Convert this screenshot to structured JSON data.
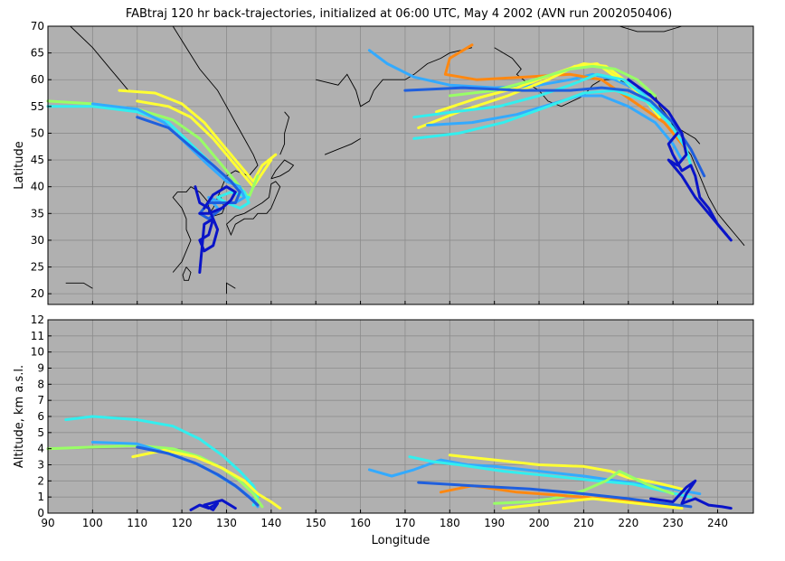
{
  "title": "FABtraj 120 hr back-trajectories, initialized at 06:00 UTC, May 4 2002 (AVN run 2002050406)",
  "colors": {
    "background": "#b0b0b0",
    "grid": "#8c8c8c",
    "coast": "#000000",
    "yellow": "#ffff33",
    "lightgreen": "#99ff66",
    "cyan": "#33eeee",
    "skyblue": "#33aaff",
    "blue": "#1f5fdd",
    "darkblue": "#0a14c8",
    "orange": "#ff8811"
  },
  "chart_data": [
    {
      "type": "line",
      "panel": "map",
      "xlabel": "",
      "ylabel": "Latitude",
      "xlim": [
        90,
        248
      ],
      "ylim": [
        18,
        70
      ],
      "yticks": [
        20,
        25,
        30,
        35,
        40,
        45,
        50,
        55,
        60,
        65,
        70
      ],
      "grid": true,
      "series": [
        {
          "color": "yellow",
          "x": [
            106,
            114,
            120,
            125,
            129,
            132,
            134,
            136,
            138,
            141
          ],
          "y": [
            58,
            57.5,
            55.5,
            52,
            48,
            45,
            43,
            41,
            44,
            46
          ]
        },
        {
          "color": "yellow",
          "x": [
            110,
            117,
            122,
            127,
            131,
            134,
            136,
            140
          ],
          "y": [
            56,
            55,
            53,
            49,
            45,
            42,
            40,
            45
          ]
        },
        {
          "color": "lightgreen",
          "x": [
            90,
            100,
            110,
            118,
            124,
            128,
            131,
            133,
            135,
            137
          ],
          "y": [
            56,
            55.5,
            54.5,
            52.5,
            49,
            45,
            42,
            40,
            38,
            42
          ]
        },
        {
          "color": "cyan",
          "x": [
            90,
            100,
            110,
            117,
            122,
            127,
            131,
            134,
            135,
            133,
            130,
            128,
            131,
            135
          ],
          "y": [
            55,
            55,
            54,
            52,
            48,
            44,
            41,
            39,
            37,
            36,
            37,
            38,
            39,
            38
          ]
        },
        {
          "color": "skyblue",
          "x": [
            100,
            110,
            116,
            121,
            126,
            130,
            133,
            134,
            132,
            129,
            126,
            128
          ],
          "y": [
            55.5,
            54.5,
            52,
            48,
            44,
            41,
            40,
            38,
            37,
            37,
            38,
            36
          ]
        },
        {
          "color": "blue",
          "x": [
            110,
            117,
            122,
            127,
            131,
            133,
            132,
            129,
            126,
            124,
            126,
            129
          ],
          "y": [
            53,
            51,
            47.5,
            44,
            41,
            39,
            37,
            37,
            37,
            35,
            34,
            36
          ]
        },
        {
          "color": "darkblue",
          "x": [
            123,
            124,
            126,
            127,
            126,
            124,
            125,
            127,
            128,
            127,
            125,
            124
          ],
          "y": [
            40,
            37,
            36,
            34,
            31,
            30,
            28,
            29,
            32,
            34,
            33,
            24
          ]
        },
        {
          "color": "darkblue",
          "x": [
            124,
            126,
            129,
            131,
            132,
            130,
            127,
            125
          ],
          "y": [
            35,
            35,
            36,
            37.5,
            39,
            40,
            38.5,
            36
          ]
        },
        {
          "color": "skyblue",
          "x": [
            162,
            166,
            172,
            180,
            190,
            200,
            207,
            212,
            217,
            221,
            225
          ],
          "y": [
            65.5,
            63,
            60.5,
            59,
            58.5,
            59,
            60,
            61,
            60,
            58.5,
            57
          ]
        },
        {
          "color": "orange",
          "x": [
            185,
            180,
            179,
            186,
            197,
            207,
            214,
            221,
            228,
            233
          ],
          "y": [
            66.5,
            64,
            61,
            60,
            60.5,
            61,
            60,
            56,
            52,
            47
          ]
        },
        {
          "color": "yellow",
          "x": [
            177,
            186,
            195,
            203,
            210,
            215,
            219,
            223,
            227
          ],
          "y": [
            54,
            56.5,
            58.5,
            61,
            63,
            62.5,
            60,
            57,
            53
          ]
        },
        {
          "color": "yellow",
          "x": [
            173,
            182,
            193,
            202,
            208,
            213,
            218
          ],
          "y": [
            51,
            54,
            57,
            60,
            62.5,
            63,
            60
          ]
        },
        {
          "color": "lightgreen",
          "x": [
            180,
            190,
            199,
            207,
            212,
            217,
            222,
            226
          ],
          "y": [
            57,
            58,
            60,
            62,
            62.5,
            62,
            60,
            57
          ]
        },
        {
          "color": "cyan",
          "x": [
            172,
            181,
            191,
            200,
            207,
            213,
            219,
            225,
            230,
            233,
            234
          ],
          "y": [
            53,
            54,
            55,
            57,
            59,
            61,
            60,
            56,
            51,
            47,
            44
          ]
        },
        {
          "color": "skyblue",
          "x": [
            175,
            185,
            195,
            203,
            209,
            214,
            220,
            226,
            230,
            232
          ],
          "y": [
            51.5,
            52,
            53.5,
            55.5,
            57,
            57,
            55,
            52,
            48,
            45
          ]
        },
        {
          "color": "cyan",
          "x": [
            172,
            182,
            192,
            202,
            210,
            217,
            224,
            229
          ],
          "y": [
            49,
            50,
            52,
            55,
            57.5,
            58,
            56,
            52
          ]
        },
        {
          "color": "blue",
          "x": [
            170,
            183,
            196,
            207,
            214,
            220,
            225,
            230,
            234,
            237
          ],
          "y": [
            58,
            58.5,
            58,
            58,
            58.5,
            58,
            56,
            52,
            47,
            42
          ]
        },
        {
          "color": "darkblue",
          "x": [
            220,
            225,
            229,
            232,
            233,
            231,
            229,
            232,
            235,
            238,
            241,
            243
          ],
          "y": [
            60,
            57,
            54,
            50,
            46,
            44,
            45,
            42,
            38,
            35,
            32,
            30
          ]
        },
        {
          "color": "darkblue",
          "x": [
            231,
            229,
            230,
            232,
            234,
            235,
            236,
            238,
            240,
            242
          ],
          "y": [
            50,
            48,
            46,
            43,
            44,
            42,
            38,
            36,
            33,
            31
          ]
        }
      ]
    },
    {
      "type": "line",
      "panel": "altitude",
      "xlabel": "Longitude",
      "ylabel": "Altitude, km a.s.l.",
      "xlim": [
        90,
        248
      ],
      "ylim": [
        0,
        12
      ],
      "xticks": [
        90,
        100,
        110,
        120,
        130,
        140,
        150,
        160,
        170,
        180,
        190,
        200,
        210,
        220,
        230,
        240
      ],
      "yticks": [
        0,
        1,
        2,
        3,
        4,
        5,
        6,
        7,
        8,
        9,
        10,
        11,
        12
      ],
      "grid": true,
      "series": [
        {
          "color": "cyan",
          "x": [
            94,
            100,
            110,
            118,
            124,
            129,
            133,
            136,
            137,
            136
          ],
          "y": [
            5.8,
            6.0,
            5.8,
            5.4,
            4.6,
            3.6,
            2.6,
            1.7,
            1.0,
            0.5
          ]
        },
        {
          "color": "lightgreen",
          "x": [
            90,
            100,
            110,
            118,
            124,
            129,
            133,
            136,
            138
          ],
          "y": [
            4.0,
            4.1,
            4.2,
            4.0,
            3.5,
            2.8,
            2.0,
            1.2,
            0.4
          ]
        },
        {
          "color": "yellow",
          "x": [
            109,
            116,
            123,
            129,
            134,
            137,
            140,
            142
          ],
          "y": [
            3.5,
            3.9,
            3.5,
            2.8,
            2.0,
            1.2,
            0.7,
            0.3
          ]
        },
        {
          "color": "skyblue",
          "x": [
            100,
            110,
            118,
            124,
            129,
            133,
            136,
            137
          ],
          "y": [
            4.4,
            4.3,
            3.6,
            3.0,
            2.2,
            1.5,
            0.8,
            0.4
          ]
        },
        {
          "color": "blue",
          "x": [
            110,
            117,
            123,
            128,
            132,
            135,
            137
          ],
          "y": [
            4.1,
            3.7,
            3.1,
            2.4,
            1.7,
            1.0,
            0.5
          ]
        },
        {
          "color": "darkblue",
          "x": [
            122,
            124,
            126,
            128,
            127,
            125,
            129,
            132
          ],
          "y": [
            0.2,
            0.5,
            0.3,
            0.6,
            0.2,
            0.5,
            0.8,
            0.3
          ]
        },
        {
          "color": "skyblue",
          "x": [
            162,
            167,
            172,
            178,
            184,
            190,
            200,
            210,
            220,
            230,
            236
          ],
          "y": [
            2.7,
            2.3,
            2.7,
            3.3,
            3.0,
            2.9,
            2.6,
            2.3,
            1.9,
            1.5,
            1.2
          ]
        },
        {
          "color": "yellow",
          "x": [
            180,
            190,
            200,
            210,
            216,
            220,
            226,
            232
          ],
          "y": [
            3.6,
            3.3,
            3.0,
            2.9,
            2.6,
            2.2,
            1.9,
            1.5
          ]
        },
        {
          "color": "cyan",
          "x": [
            171,
            176,
            182,
            192,
            203,
            213,
            221,
            229,
            234
          ],
          "y": [
            3.5,
            3.2,
            3.0,
            2.6,
            2.3,
            2.0,
            1.8,
            1.3,
            1.0
          ]
        },
        {
          "color": "lightgreen",
          "x": [
            190,
            198,
            205,
            210,
            215,
            218,
            224,
            230
          ],
          "y": [
            0.6,
            0.7,
            1.0,
            1.4,
            2.0,
            2.6,
            1.8,
            1.2
          ]
        },
        {
          "color": "orange",
          "x": [
            178,
            185,
            195,
            205,
            214,
            222,
            230
          ],
          "y": [
            1.3,
            1.7,
            1.3,
            1.1,
            0.9,
            0.7,
            0.5
          ]
        },
        {
          "color": "blue",
          "x": [
            173,
            185,
            198,
            210,
            220,
            228,
            234
          ],
          "y": [
            1.9,
            1.7,
            1.5,
            1.2,
            0.9,
            0.6,
            0.4
          ]
        },
        {
          "color": "darkblue",
          "x": [
            225,
            230,
            233,
            235,
            233,
            232,
            235,
            238,
            241,
            243
          ],
          "y": [
            0.9,
            0.7,
            1.6,
            2.0,
            1.2,
            0.6,
            0.9,
            0.5,
            0.4,
            0.3
          ]
        },
        {
          "color": "yellow",
          "x": [
            192,
            202,
            212,
            222,
            232
          ],
          "y": [
            0.3,
            0.6,
            0.9,
            0.6,
            0.3
          ]
        }
      ]
    }
  ]
}
